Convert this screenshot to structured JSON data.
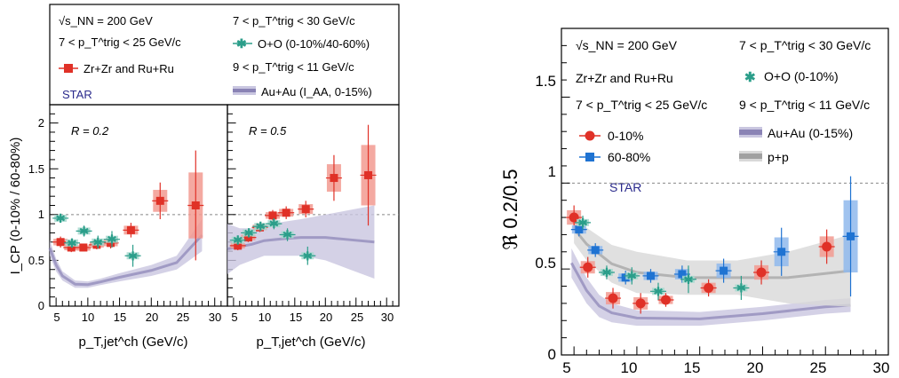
{
  "colors": {
    "zr": "#e03127",
    "zrband": "#f29a90",
    "oo": "#2b9e8a",
    "oband": "#a8d9cf",
    "auau": "#8a83b5",
    "auauband": "#c9c6e0",
    "pp": "#a0a0a0",
    "ppband": "#d8d8d8",
    "blue": "#1f73d2",
    "blueband": "#8fb8ec",
    "star": "#2a2a8c"
  },
  "left": {
    "legend": {
      "energy": "√s_NN = 200 GeV",
      "trig1": "7 < p_T^trig < 25 GeV/c",
      "zr": "Zr+Zr and Ru+Ru",
      "star": "STAR",
      "trig2": "7 < p_T^trig < 30 GeV/c",
      "oo": "O+O (0-10%/40-60%)",
      "trig3": "9 < p_T^trig < 11 GeV/c",
      "auau": "Au+Au (I_AA, 0-15%)"
    },
    "ylabel": "I_CP (0-10% / 60-80%)",
    "xlabel": "p_T,jet^ch (GeV/c)",
    "yticks": [
      "0",
      "0.5",
      "1",
      "1.5",
      "2"
    ],
    "xticks_a": [
      "5",
      "10",
      "15",
      "20",
      "25",
      "30"
    ],
    "xticks_b": [
      "5",
      "10",
      "15",
      "20",
      "25",
      "30"
    ]
  },
  "right": {
    "legend": {
      "energy": "√s_NN = 200 GeV",
      "zr": "Zr+Zr and Ru+Ru",
      "trig1": "7 < p_T^trig < 25 GeV/c",
      "c1": "0-10%",
      "c2": "60-80%",
      "star": "STAR",
      "trig2": "7 < p_T^trig < 30 GeV/c",
      "oo": "O+O (0-10%)",
      "trig3": "9 < p_T^trig < 11 GeV/c",
      "auau": "Au+Au (0-15%)",
      "pp": "p+p"
    },
    "ylabel": "ℜ 0.2/0.5",
    "yticks": [
      "0",
      "0.5",
      "1",
      "1.5"
    ],
    "xticks": [
      "5",
      "10",
      "15",
      "20",
      "25",
      "30"
    ]
  },
  "chart_data": [
    {
      "type": "scatter",
      "panel": "R = 0.2",
      "xlim": [
        4,
        32
      ],
      "ylim": [
        0,
        2.2
      ],
      "xlabel": "p_T,jet^ch (GeV/c)",
      "ylabel": "I_CP (0-10% / 60-80%)",
      "reference_line": 1,
      "series": [
        {
          "name": "Zr+Zr and Ru+Ru",
          "x": [
            5.7,
            7.4,
            9.3,
            11.4,
            13.6,
            16.8,
            21.4,
            27
          ],
          "y": [
            0.7,
            0.64,
            0.64,
            0.67,
            0.69,
            0.83,
            1.15,
            1.1
          ],
          "yerr": [
            0.06,
            0.05,
            0.04,
            0.05,
            0.06,
            0.08,
            0.2,
            0.6
          ]
        },
        {
          "name": "O+O (0-10%/40-60%)",
          "x": [
            5.7,
            7.5,
            9.4,
            11.6,
            13.8,
            17.1
          ],
          "y": [
            0.96,
            0.69,
            0.82,
            0.7,
            0.73,
            0.55
          ],
          "yerr": [
            0.04,
            0.05,
            0.06,
            0.07,
            0.09,
            0.12
          ]
        },
        {
          "name": "Au+Au (I_AA, 0-15%)",
          "x": [
            4,
            5,
            6,
            8,
            10,
            12,
            15,
            20,
            24,
            28
          ],
          "y_low": [
            0.55,
            0.38,
            0.28,
            0.2,
            0.2,
            0.23,
            0.27,
            0.33,
            0.4,
            0.6
          ],
          "y_high": [
            0.72,
            0.52,
            0.38,
            0.28,
            0.27,
            0.3,
            0.36,
            0.45,
            0.55,
            0.95
          ]
        }
      ]
    },
    {
      "type": "scatter",
      "panel": "R = 0.5",
      "xlim": [
        4,
        32
      ],
      "ylim": [
        0,
        2.2
      ],
      "xlabel": "p_T,jet^ch (GeV/c)",
      "reference_line": 1,
      "series": [
        {
          "name": "Zr+Zr and Ru+Ru",
          "x": [
            5.7,
            7.4,
            9.3,
            11.4,
            13.6,
            16.8,
            21.4,
            27
          ],
          "y": [
            0.66,
            0.75,
            0.86,
            0.99,
            1.02,
            1.06,
            1.4,
            1.43
          ],
          "yerr": [
            0.05,
            0.05,
            0.05,
            0.06,
            0.07,
            0.09,
            0.25,
            0.55
          ]
        },
        {
          "name": "O+O (0-10%/40-60%)",
          "x": [
            5.7,
            7.5,
            9.4,
            11.6,
            13.8,
            17.1
          ],
          "y": [
            0.72,
            0.8,
            0.87,
            0.9,
            0.78,
            0.55
          ],
          "yerr": [
            0.05,
            0.05,
            0.05,
            0.06,
            0.07,
            0.1
          ]
        },
        {
          "name": "Au+Au (I_AA, 0-15%)",
          "x": [
            4,
            6,
            8,
            10,
            13,
            16,
            20,
            24,
            28
          ],
          "y_low": [
            0.35,
            0.45,
            0.5,
            0.55,
            0.55,
            0.55,
            0.5,
            0.4,
            0.3
          ],
          "y_high": [
            0.9,
            0.85,
            0.85,
            0.88,
            0.92,
            0.95,
            1.0,
            1.05,
            1.1
          ]
        }
      ]
    },
    {
      "type": "scatter",
      "xlim": [
        4,
        30
      ],
      "ylim": [
        0,
        1.9
      ],
      "ylabel": "ℜ 0.2/0.5",
      "reference_line": 1,
      "series": [
        {
          "name": "0-10%",
          "x": [
            5,
            6.1,
            8.1,
            10.3,
            12.3,
            15.7,
            19.9,
            25.1
          ],
          "y": [
            0.8,
            0.51,
            0.33,
            0.3,
            0.32,
            0.39,
            0.48,
            0.63
          ],
          "yerr": [
            0.07,
            0.06,
            0.06,
            0.06,
            0.04,
            0.05,
            0.07,
            0.1
          ]
        },
        {
          "name": "60-80%",
          "x": [
            5.4,
            6.7,
            9.1,
            11.1,
            13.6,
            16.9,
            21.5,
            27
          ],
          "y": [
            0.73,
            0.61,
            0.45,
            0.46,
            0.47,
            0.49,
            0.6,
            0.69
          ],
          "yerr": [
            0.04,
            0.04,
            0.04,
            0.04,
            0.05,
            0.07,
            0.14,
            0.35
          ]
        },
        {
          "name": "O+O (0-10%)",
          "x": [
            5.7,
            7.6,
            9.6,
            11.7,
            14.1,
            18.3
          ],
          "y": [
            0.77,
            0.48,
            0.46,
            0.37,
            0.44,
            0.39
          ],
          "yerr": [
            0.04,
            0.04,
            0.05,
            0.05,
            0.08,
            0.07
          ]
        },
        {
          "name": "Au+Au (0-15%)",
          "x": [
            4.8,
            6,
            7,
            8,
            10,
            15,
            20,
            25,
            27
          ],
          "y_low": [
            0.45,
            0.3,
            0.22,
            0.19,
            0.17,
            0.17,
            0.2,
            0.24,
            0.25
          ],
          "y_high": [
            0.62,
            0.45,
            0.35,
            0.3,
            0.26,
            0.25,
            0.28,
            0.32,
            0.33
          ]
        },
        {
          "name": "p+p",
          "x": [
            5,
            6,
            8,
            10,
            14,
            18,
            22,
            27
          ],
          "y_low": [
            0.65,
            0.55,
            0.42,
            0.36,
            0.35,
            0.35,
            0.3,
            0.28
          ],
          "y_high": [
            0.82,
            0.74,
            0.64,
            0.6,
            0.55,
            0.55,
            0.6,
            0.7
          ]
        }
      ]
    }
  ]
}
